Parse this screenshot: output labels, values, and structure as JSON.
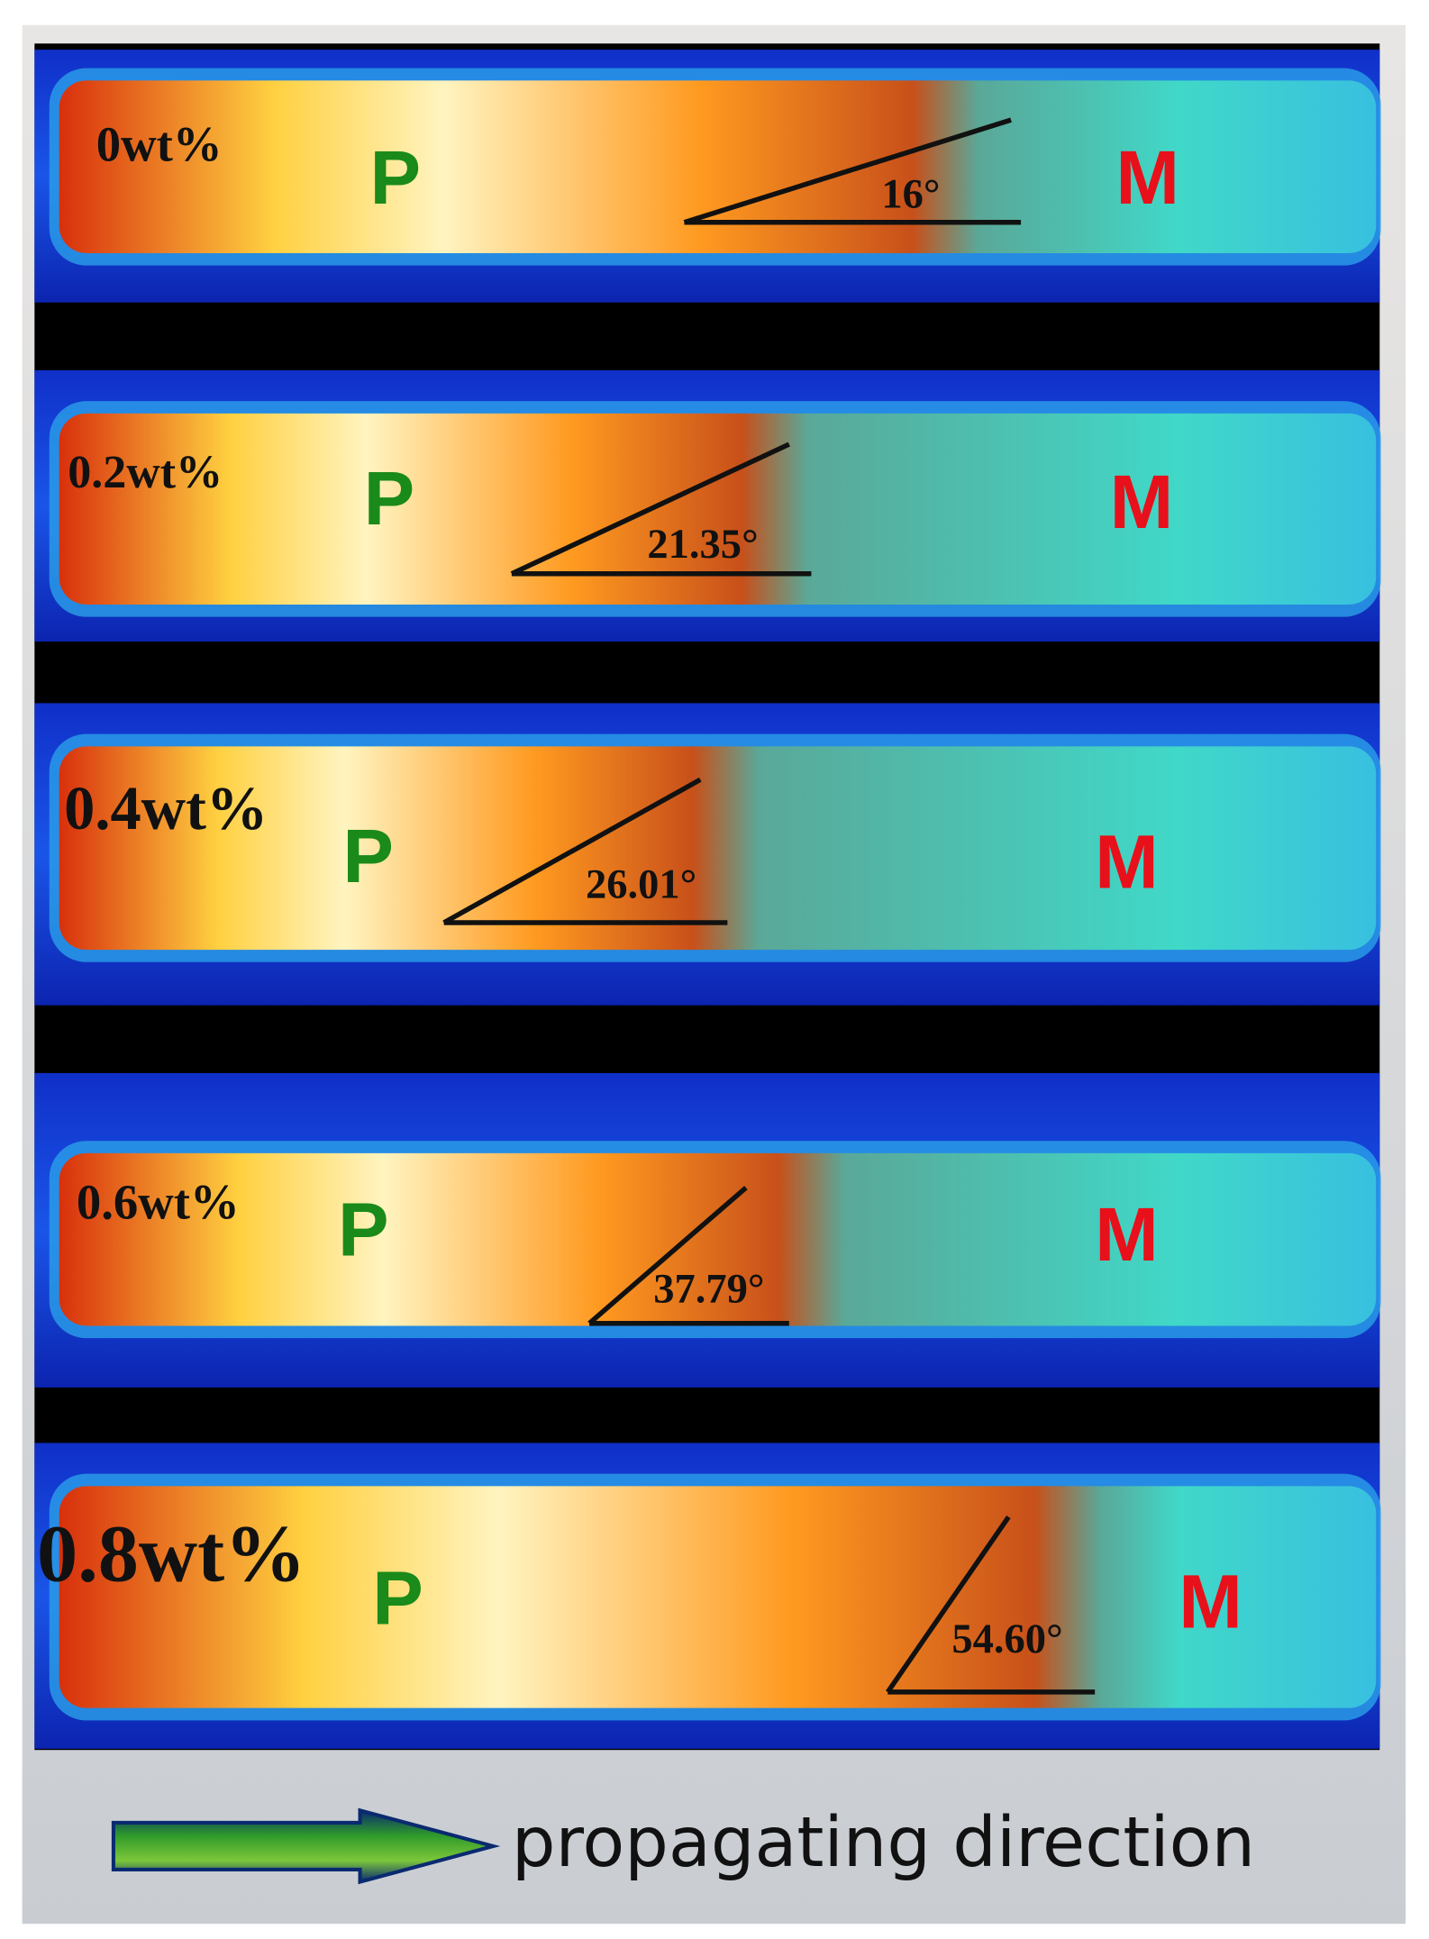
{
  "panels": [
    {
      "label": "0wt%",
      "p": "P",
      "m": "M",
      "angle": "16°"
    },
    {
      "label": "0.2wt%",
      "p": "P",
      "m": "M",
      "angle": "21.35°"
    },
    {
      "label": "0.4wt%",
      "p": "P",
      "m": "M",
      "angle": "26.01°"
    },
    {
      "label": "0.6wt%",
      "p": "P",
      "m": "M",
      "angle": "37.79°"
    },
    {
      "label": "0.8wt%",
      "p": "P",
      "m": "M",
      "angle": "54.60°"
    }
  ],
  "footer": "propagating direction"
}
